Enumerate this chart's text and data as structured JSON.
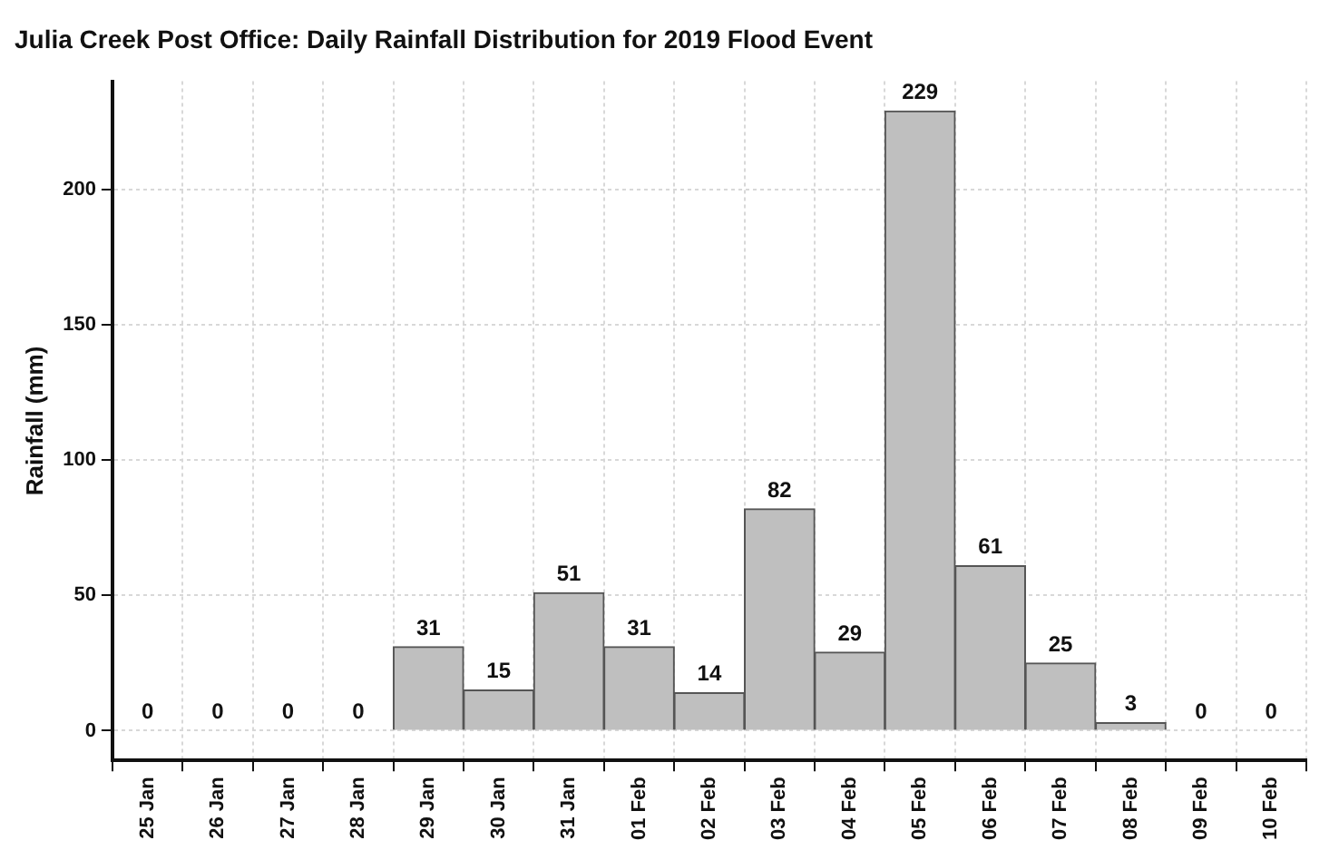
{
  "chart_data": {
    "type": "bar",
    "title": "Julia Creek Post Office: Daily Rainfall Distribution for 2019 Flood Event",
    "ylabel": "Rainfall (mm)",
    "categories": [
      "25 Jan",
      "26 Jan",
      "27 Jan",
      "28 Jan",
      "29 Jan",
      "30 Jan",
      "31 Jan",
      "01 Feb",
      "02 Feb",
      "03 Feb",
      "04 Feb",
      "05 Feb",
      "06 Feb",
      "07 Feb",
      "08 Feb",
      "09 Feb",
      "10 Feb"
    ],
    "values": [
      0,
      0,
      0,
      0,
      31,
      15,
      51,
      31,
      14,
      82,
      29,
      229,
      61,
      25,
      3,
      0,
      0
    ],
    "color": "#bfbfbf",
    "ylim": [
      -11,
      240
    ],
    "yticks": [
      0,
      50,
      100,
      150,
      200
    ],
    "grid": true,
    "data_labels": true
  }
}
